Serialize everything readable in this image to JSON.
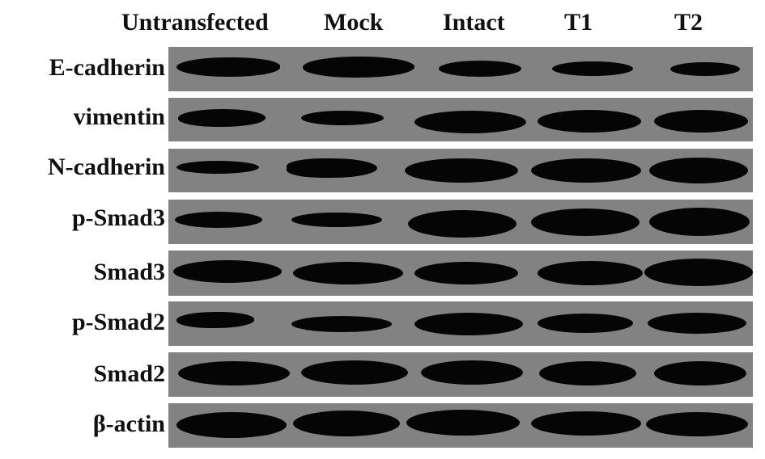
{
  "figure": {
    "columns": [
      "Untransfected",
      "Mock",
      "Intact",
      "T1",
      "T2"
    ],
    "rows": [
      "E-cadherin",
      "vimentin",
      "N-cadherin",
      "p-Smad3",
      "Smad3",
      "p-Smad2",
      "Smad2",
      "β-actin"
    ],
    "colors": {
      "strip_background": "#828282",
      "band": "#050505",
      "text": "#111111"
    }
  }
}
